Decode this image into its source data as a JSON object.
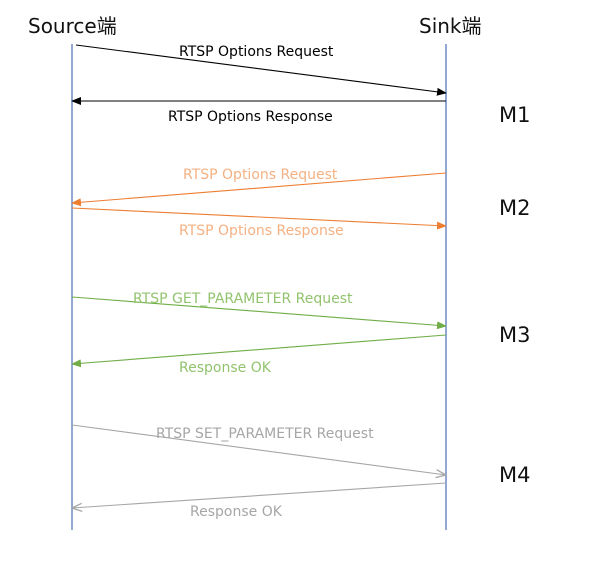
{
  "actors": {
    "source": {
      "label": "Source端"
    },
    "sink": {
      "label": "Sink端"
    }
  },
  "colors": {
    "lifeline": "#4a6fb5",
    "m1": "#000000",
    "m2": "#ed7d31",
    "m3": "#70ad47",
    "m4": "#a6a6a6"
  },
  "phases": [
    {
      "label": "M1"
    },
    {
      "label": "M2"
    },
    {
      "label": "M3"
    },
    {
      "label": "M4"
    }
  ],
  "messages": [
    {
      "label": "RTSP Options Request",
      "from": "source",
      "to": "sink",
      "phase": "M1"
    },
    {
      "label": "RTSP Options Response",
      "from": "sink",
      "to": "source",
      "phase": "M1"
    },
    {
      "label": "RTSP Options Request",
      "from": "sink",
      "to": "source",
      "phase": "M2"
    },
    {
      "label": "RTSP Options Response",
      "from": "source",
      "to": "sink",
      "phase": "M2"
    },
    {
      "label": "RTSP GET_PARAMETER Request",
      "from": "source",
      "to": "sink",
      "phase": "M3"
    },
    {
      "label": "Response OK",
      "from": "sink",
      "to": "source",
      "phase": "M3"
    },
    {
      "label": "RTSP SET_PARAMETER Request",
      "from": "source",
      "to": "sink",
      "phase": "M4"
    },
    {
      "label": "Response OK",
      "from": "sink",
      "to": "source",
      "phase": "M4"
    }
  ]
}
